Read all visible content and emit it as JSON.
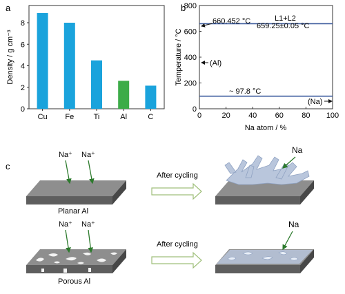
{
  "panel_labels": {
    "a": "a",
    "b": "b",
    "c": "c"
  },
  "chart_data": [
    {
      "type": "bar",
      "categories": [
        "Cu",
        "Fe",
        "Ti",
        "Al",
        "C"
      ],
      "values": [
        8.9,
        8.0,
        4.5,
        2.6,
        2.15
      ],
      "colors": [
        "#1aa3dc",
        "#1aa3dc",
        "#1aa3dc",
        "#3cac48",
        "#1aa3dc"
      ],
      "ylabel": "Density / g cm⁻³",
      "ylim": [
        0,
        9.6
      ],
      "yticks": [
        "0",
        "2",
        "4",
        "6",
        "8"
      ],
      "grid": false
    },
    {
      "type": "line",
      "xlabel": "Na atom / %",
      "ylabel": "Temperature / °C",
      "xlim": [
        0,
        100
      ],
      "ylim": [
        0,
        800
      ],
      "xticks": [
        "0",
        "20",
        "40",
        "60",
        "80",
        "100"
      ],
      "yticks": [
        "0",
        "200",
        "400",
        "600",
        "800"
      ],
      "series": [
        {
          "x": [
            0,
            100
          ],
          "y": [
            659.25,
            659.25
          ],
          "color": "#3a5a9c"
        },
        {
          "x": [
            0,
            100
          ],
          "y": [
            97.8,
            97.8
          ],
          "color": "#3a5a9c"
        }
      ],
      "annotations": [
        {
          "text": "660.452 °C"
        },
        {
          "text": "L1+L2"
        },
        {
          "text": "659.25±0.05 °C"
        },
        {
          "text": "(Al)"
        },
        {
          "text": "~ 97.8 °C"
        },
        {
          "text": "(Na)"
        }
      ]
    }
  ],
  "schematic": {
    "ion_label": "Na⁺",
    "na_label": "Na",
    "after_cycling": "After cycling",
    "planar_label": "Planar Al",
    "porous_label": "Porous Al"
  }
}
